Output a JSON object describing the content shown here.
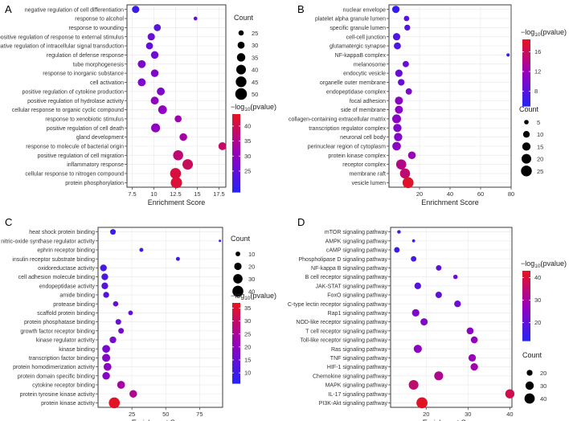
{
  "chart_data": [
    {
      "panel": "A",
      "type": "scatter",
      "xlabel": "Enrichment Score",
      "xticks": [
        7.5,
        10.0,
        12.5,
        15.0,
        17.5
      ],
      "xlim": [
        6.9,
        18.3
      ],
      "size_legend": {
        "title": "Count",
        "values": [
          25,
          30,
          35,
          40,
          45,
          50
        ]
      },
      "color_legend": {
        "ticks": [
          25,
          30,
          35,
          40
        ],
        "range": [
          18,
          44
        ]
      },
      "terms": [
        "negative regulation of cell differentiation",
        "response to alcohol",
        "response to wounding",
        "positive regulation of response to external stimulus",
        "negative regulation of intracellular signal transduction",
        "regulation of defense response",
        "tube morphogenesis",
        "response to inorganic substance",
        "cell activation",
        "positive regulation of cytokine production",
        "positive regulation of hydrolase activity",
        "cellular response to organic cyclic compound",
        "response to xenobiotic stimulus",
        "positive regulation of cell death",
        "gland development",
        "response to molecule of bacterial origin",
        "positive regulation of cell migration",
        "inflammatory response",
        "cellular response to nitrogen compound",
        "protein phosphorylation"
      ],
      "x": [
        7.9,
        14.8,
        10.4,
        9.7,
        9.5,
        10.1,
        8.6,
        10.1,
        8.6,
        10.8,
        10.1,
        11.0,
        12.8,
        10.2,
        13.4,
        17.9,
        12.8,
        13.9,
        12.5,
        12.6
      ],
      "count": [
        31,
        22,
        30,
        31,
        30,
        32,
        33,
        32,
        33,
        33,
        33,
        36,
        30,
        37,
        32,
        33,
        42,
        44,
        46,
        48
      ],
      "neglog10p": [
        21,
        25,
        24,
        26,
        25,
        26,
        28,
        28,
        28,
        28,
        30,
        30,
        32,
        30,
        33,
        38,
        37,
        39,
        41,
        42
      ]
    },
    {
      "panel": "B",
      "type": "scatter",
      "xlabel": "Enrichment Score",
      "xticks": [
        20,
        40,
        60,
        80
      ],
      "xlim": [
        0,
        80
      ],
      "size_legend": {
        "title": "Count",
        "values": [
          5,
          10,
          15,
          20,
          25
        ]
      },
      "color_legend": {
        "ticks": [
          8,
          12,
          16
        ],
        "range": [
          5,
          18.5
        ]
      },
      "terms": [
        "nuclear envelope",
        "platelet alpha granule lumen",
        "specific granule lumen",
        "cell-cell junction",
        "glutamatergic synapse",
        "NF-kappaB complex",
        "melanosome",
        "endocytic vesicle",
        "organelle outer membrane",
        "endopeptidase complex",
        "focal adhesion",
        "side of membrane",
        "collagen-containing extracellular matrix",
        "transcription regulator complex",
        "neuronal cell body",
        "perinuclear region of cytoplasm",
        "protein kinase complex",
        "receptor complex",
        "membrane raft",
        "vesicle lumen"
      ],
      "x": [
        4.5,
        11.5,
        12.0,
        5.0,
        5.5,
        78.0,
        11.0,
        6.5,
        8.0,
        13.0,
        6.5,
        6.5,
        5.0,
        5.5,
        6.0,
        5.0,
        15.0,
        8.0,
        10.5,
        12.5
      ],
      "count": [
        12,
        7,
        8,
        12,
        11,
        3,
        9,
        12,
        10,
        9,
        14,
        14,
        17,
        15,
        15,
        16,
        13,
        22,
        22,
        26
      ],
      "neglog10p": [
        6.0,
        8.0,
        8.0,
        7.5,
        7.5,
        6.0,
        9.0,
        9.0,
        9.0,
        10.0,
        11.0,
        11.0,
        11.0,
        10.5,
        10.5,
        11.0,
        12.0,
        14.0,
        15.0,
        18.0
      ]
    },
    {
      "panel": "C",
      "type": "scatter",
      "xlabel": "Enrichment Score",
      "xticks": [
        25,
        50,
        75
      ],
      "xlim": [
        0,
        92
      ],
      "size_legend": {
        "title": "Count",
        "values": [
          10,
          20,
          30,
          40
        ]
      },
      "color_legend": {
        "ticks": [
          10,
          15,
          20,
          25,
          30,
          35
        ],
        "range": [
          6,
          37
        ]
      },
      "terms": [
        "heat shock protein binding",
        "nitric-oxide synthase regulator activity",
        "ephrin receptor binding",
        "insulin receptor substrate binding",
        "oxidoreductase activity",
        "cell adhesion molecule binding",
        "endopeptidase activity",
        "amide binding",
        "protease binding",
        "scaffold protein binding",
        "protein phosphatase binding",
        "growth factor receptor binding",
        "kinase regulator activity",
        "kinase binding",
        "transcription factor binding",
        "protein homodimerization activity",
        "protein domain specific binding",
        "cytokine receptor binding",
        "protein tyrosine kinase activity",
        "protein kinase activity"
      ],
      "x": [
        11,
        90,
        32,
        59,
        4,
        5,
        5,
        6,
        13,
        24,
        15,
        17,
        11,
        6,
        6,
        7,
        6,
        17,
        26,
        12
      ],
      "count": [
        13,
        5,
        8,
        8,
        17,
        17,
        17,
        14,
        12,
        10,
        13,
        13,
        17,
        22,
        23,
        22,
        21,
        22,
        21,
        40
      ],
      "neglog10p": [
        10,
        9,
        11,
        9,
        11,
        12,
        13,
        13,
        15,
        14,
        15,
        18,
        17,
        17,
        19,
        20,
        19,
        24,
        26,
        36
      ]
    },
    {
      "panel": "D",
      "type": "scatter",
      "xlabel": "Enrichment Score",
      "xticks": [
        20,
        30,
        40
      ],
      "xlim": [
        11.5,
        40.5
      ],
      "size_legend": {
        "title": "Count",
        "values": [
          20,
          30,
          40
        ]
      },
      "color_legend": {
        "ticks": [
          20,
          30,
          40
        ],
        "range": [
          12,
          43
        ]
      },
      "terms": [
        "mTOR signaling pathway",
        "AMPK signaling pathway",
        "cAMP signaling pathway",
        "Phospholipase D signaling pathway",
        "NF-kappa B signaling pathway",
        "B cell receptor signaling pathway",
        "JAK-STAT signaling pathway",
        "FoxO signaling pathway",
        "C-type lectin receptor signaling pathway",
        "Rap1 signaling pathway",
        "NOD-like receptor signaling pathway",
        "T cell receptor signaling pathway",
        "Toll-like receptor signaling pathway",
        "Ras signaling pathway",
        "TNF signaling pathway",
        "HIF-1 signaling pathway",
        "Chemokine signaling pathway",
        "MAPK signaling pathway",
        "IL-17 signaling pathway",
        "PI3K-Akt signaling pathway"
      ],
      "x": [
        13.5,
        17.0,
        13.0,
        17.0,
        23.0,
        27.0,
        18.0,
        23.0,
        27.5,
        17.5,
        19.5,
        30.5,
        31.5,
        18.0,
        31.0,
        31.5,
        23.0,
        17.0,
        40.0,
        19.0
      ],
      "count": [
        14,
        13,
        19,
        19,
        19,
        16,
        23,
        22,
        23,
        26,
        25,
        24,
        24,
        29,
        26,
        26,
        33,
        37,
        34,
        45
      ],
      "neglog10p": [
        14,
        16,
        15,
        17,
        20,
        22,
        19,
        20,
        22,
        24,
        24,
        26,
        27,
        26,
        28,
        29,
        32,
        35,
        38,
        42
      ]
    }
  ]
}
